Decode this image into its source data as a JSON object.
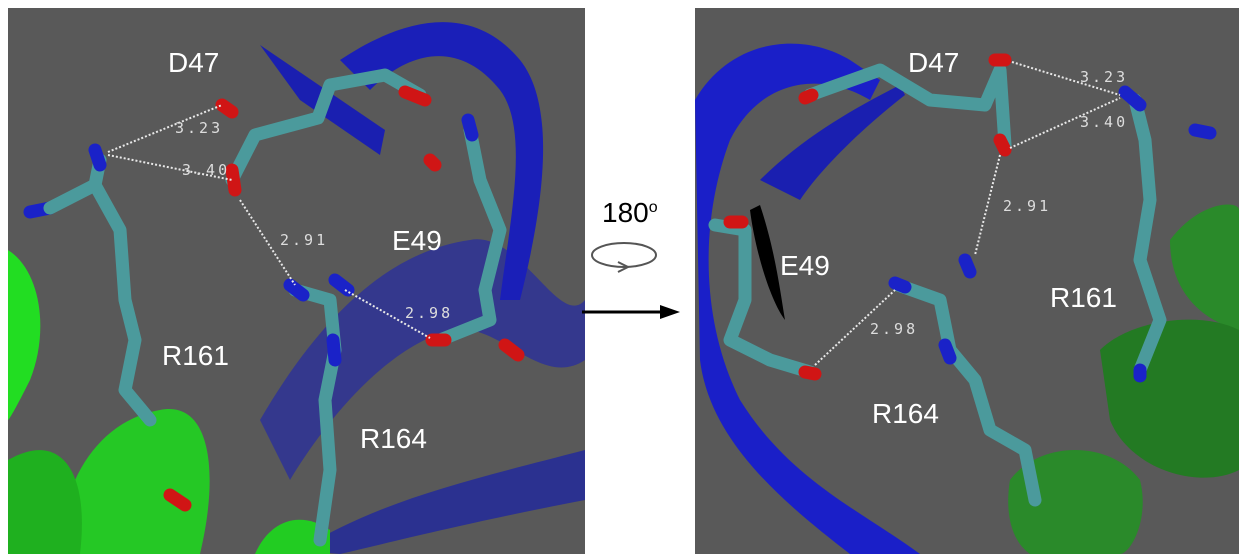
{
  "left_panel": {
    "residues": [
      "D47",
      "E49",
      "R161",
      "R164"
    ],
    "distances": [
      "3.23",
      "3.40",
      "2.91",
      "2.98"
    ]
  },
  "rotation": {
    "angle": "180",
    "degree_symbol": "o"
  },
  "right_panel": {
    "residues": [
      "D47",
      "E49",
      "R161",
      "R164"
    ],
    "distances": [
      "3.23",
      "3.40",
      "2.91",
      "2.98"
    ]
  }
}
